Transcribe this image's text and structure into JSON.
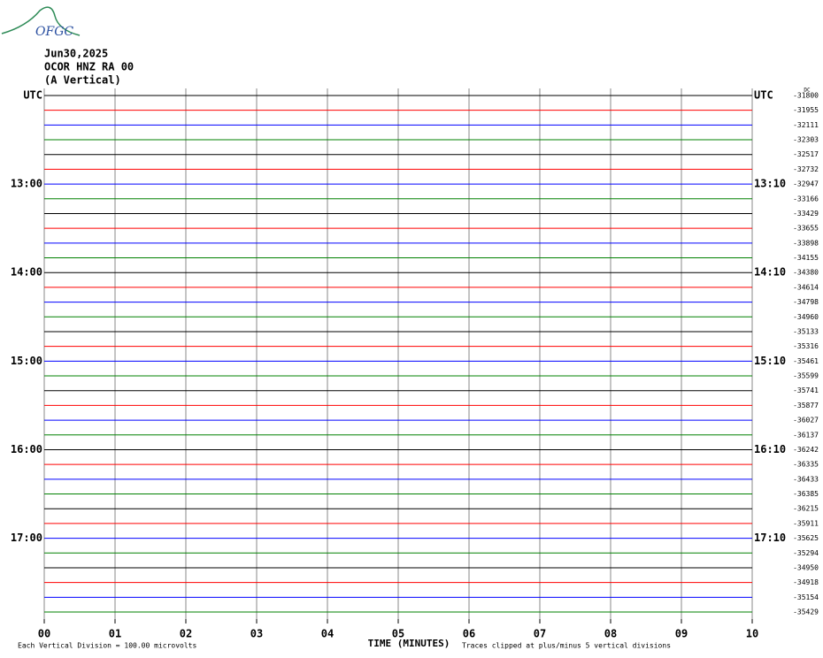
{
  "logo": "OFGC",
  "header": {
    "date": "Jun30,2025",
    "station": "OCOR HNZ RA 00",
    "component": "(A Vertical)"
  },
  "chart_data": {
    "type": "helicorder",
    "dc_label": "DC",
    "xlabel": "TIME (MINUTES)",
    "note_left": "Each Vertical Division =  100.00 microvolts",
    "note_right": "Traces clipped at plus/minus 5 vertical divisions",
    "xlim": [
      0,
      10
    ],
    "xticks": [
      {
        "value": 0,
        "label": "00"
      },
      {
        "value": 1,
        "label": "01"
      },
      {
        "value": 2,
        "label": "02"
      },
      {
        "value": 3,
        "label": "03"
      },
      {
        "value": 4,
        "label": "04"
      },
      {
        "value": 5,
        "label": "05"
      },
      {
        "value": 6,
        "label": "06"
      },
      {
        "value": 7,
        "label": "07"
      },
      {
        "value": 8,
        "label": "08"
      },
      {
        "value": 9,
        "label": "09"
      },
      {
        "value": 10,
        "label": "10"
      }
    ],
    "colors": [
      "#000000",
      "#ff0000",
      "#0000ff",
      "#008000"
    ],
    "left_labels": [
      "UTC",
      null,
      null,
      null,
      null,
      null,
      "13:00",
      null,
      null,
      null,
      null,
      null,
      "14:00",
      null,
      null,
      null,
      null,
      null,
      "15:00",
      null,
      null,
      null,
      null,
      null,
      "16:00",
      null,
      null,
      null,
      null,
      null,
      "17:00",
      null,
      null,
      null,
      null,
      null
    ],
    "right_labels": [
      "UTC",
      null,
      null,
      null,
      null,
      null,
      "13:10",
      null,
      null,
      null,
      null,
      null,
      "14:10",
      null,
      null,
      null,
      null,
      null,
      "15:10",
      null,
      null,
      null,
      null,
      null,
      "16:10",
      null,
      null,
      null,
      null,
      null,
      "17:10",
      null,
      null,
      null,
      null,
      null
    ],
    "offsets": [
      -31800,
      -31955,
      -32111,
      -32303,
      -32517,
      -32732,
      -32947,
      -33166,
      -33429,
      -33655,
      -33898,
      -34155,
      -34380,
      -34614,
      -34798,
      -34960,
      -35133,
      -35316,
      -35461,
      -35599,
      -35741,
      -35877,
      -36027,
      -36137,
      -36242,
      -36335,
      -36433,
      -36385,
      -36215,
      -35911,
      -35625,
      -35294,
      -34950,
      -34918,
      -35154,
      -35429
    ]
  }
}
